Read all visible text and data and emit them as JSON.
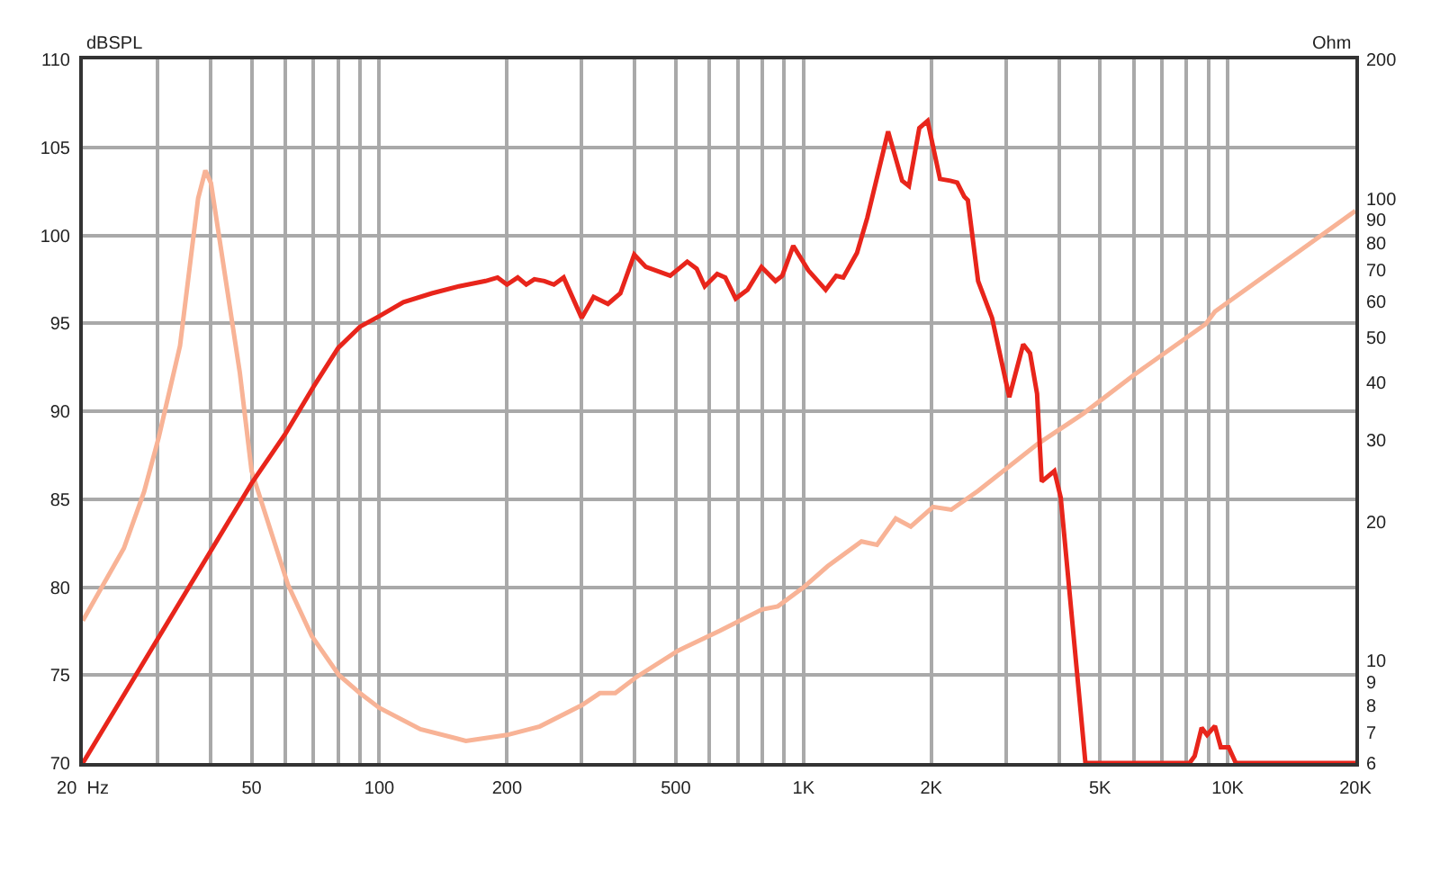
{
  "chart_data": {
    "type": "line",
    "ylabel": "Ohm",
    "y2label": "dBSPL",
    "xlim": [
      20,
      20000
    ],
    "xticks": [
      {
        "value": 20,
        "label": "20  Hz"
      },
      {
        "value": 30,
        "label": null
      },
      {
        "value": 40,
        "label": null
      },
      50,
      {
        "value": 60,
        "label": null
      },
      {
        "value": 70,
        "label": null
      },
      {
        "value": 80,
        "label": null
      },
      {
        "value": 90,
        "label": null
      },
      100,
      200,
      {
        "value": 300,
        "label": null
      },
      {
        "value": 400,
        "label": null
      },
      500,
      {
        "value": 600,
        "label": null
      },
      {
        "value": 700,
        "label": null
      },
      {
        "value": 800,
        "label": null
      },
      {
        "value": 900,
        "label": null
      },
      {
        "value": 1000,
        "label": "1K"
      },
      {
        "value": 2000,
        "label": "2K"
      },
      {
        "value": 3000,
        "label": null
      },
      {
        "value": 4000,
        "label": null
      },
      {
        "value": 5000,
        "label": "5K"
      },
      {
        "value": 6000,
        "label": null
      },
      {
        "value": 7000,
        "label": null
      },
      {
        "value": 8000,
        "label": null
      },
      {
        "value": 9000,
        "label": null
      },
      {
        "value": 10000,
        "label": "10K"
      },
      {
        "value": 20000,
        "label": "20K"
      }
    ],
    "ylim": [
      6,
      200
    ],
    "yticks": [
      6,
      7,
      8,
      9,
      10,
      20,
      30,
      40,
      50,
      60,
      70,
      80,
      90,
      100,
      200
    ],
    "y2lim": [
      70,
      110
    ],
    "y2ticks": [
      70,
      75,
      80,
      85,
      90,
      95,
      100,
      105,
      110
    ],
    "log": "xy",
    "grid": true,
    "series": [
      {
        "color": "#e8251b",
        "axis": "y2",
        "x": [
          20,
          50,
          60,
          70,
          80,
          90,
          100,
          114,
          133,
          154,
          178,
          190,
          200,
          212,
          222,
          232,
          245,
          258,
          272,
          300,
          320,
          346,
          370,
          399,
          425,
          485,
          532,
          560,
          585,
          626,
          654,
          692,
          738,
          796,
          859,
          891,
          946,
          1027,
          1128,
          1194,
          1241,
          1337,
          1414,
          1583,
          1708,
          1772,
          1875,
          1961,
          2098,
          2218,
          2303,
          2393,
          2440,
          2580,
          2783,
          3056,
          3296,
          3420,
          3553,
          3644,
          3903,
          4040,
          4620,
          8130,
          8360,
          8680,
          8940,
          9330,
          9630,
          10050,
          10450,
          20000
        ],
        "values": [
          70,
          85.9,
          88.7,
          91.4,
          93.6,
          94.8,
          95.4,
          96.2,
          96.7,
          97.1,
          97.4,
          97.6,
          97.2,
          97.6,
          97.2,
          97.5,
          97.4,
          97.2,
          97.6,
          95.3,
          96.5,
          96.1,
          96.7,
          98.9,
          98.2,
          97.7,
          98.5,
          98.1,
          97.1,
          97.8,
          97.6,
          96.4,
          96.9,
          98.2,
          97.4,
          97.7,
          99.4,
          98.0,
          96.9,
          97.7,
          97.6,
          99.0,
          101.0,
          105.9,
          103.1,
          102.8,
          106.1,
          106.5,
          103.2,
          103.1,
          103.0,
          102.2,
          102.0,
          97.4,
          95.3,
          90.8,
          93.8,
          93.3,
          91.0,
          86.0,
          86.6,
          85.1,
          70,
          70,
          70.4,
          72.0,
          71.6,
          72.1,
          70.9,
          70.9,
          70,
          70
        ]
      },
      {
        "color": "#f8b396",
        "x": [
          20,
          25,
          27.9,
          30.2,
          33.9,
          37.4,
          38.9,
          40.1,
          43.3,
          46.9,
          50,
          60.9,
          69.3,
          80.3,
          90,
          100,
          125,
          160,
          200,
          239,
          300,
          331,
          360,
          403,
          506,
          635,
          798,
          870,
          1000,
          1140,
          1370,
          1490,
          1650,
          1790,
          2020,
          2230,
          2580,
          3560,
          4560,
          6010,
          8880,
          9330,
          20000
        ],
        "values": [
          12.2,
          17.5,
          23.2,
          30.4,
          48,
          100,
          115,
          108,
          68,
          42,
          25.7,
          14.6,
          11.3,
          9.3,
          8.5,
          7.9,
          7.1,
          6.7,
          6.9,
          7.2,
          8.0,
          8.5,
          8.5,
          9.2,
          10.5,
          11.6,
          12.9,
          13.1,
          14.4,
          16.0,
          18.1,
          17.8,
          20.3,
          19.5,
          21.5,
          21.2,
          23.3,
          29.4,
          34.2,
          41.5,
          53.5,
          56.9,
          94
        ]
      }
    ]
  }
}
